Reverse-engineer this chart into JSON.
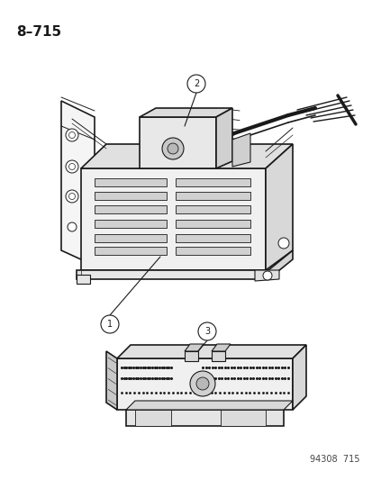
{
  "title_label": "8–715",
  "footnote": "94308  715",
  "background_color": "#ffffff",
  "line_color": "#1a1a1a",
  "figsize": [
    4.14,
    5.33
  ],
  "dpi": 100
}
